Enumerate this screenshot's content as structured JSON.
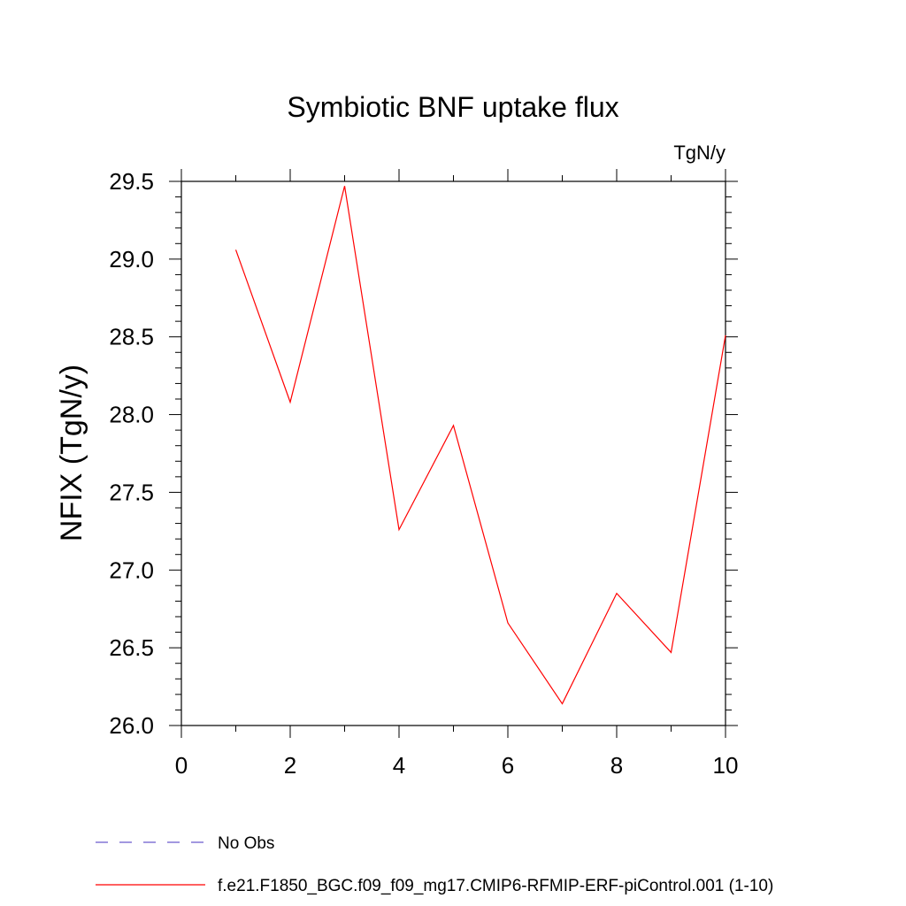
{
  "chart_data": {
    "type": "line",
    "title": "Symbiotic BNF uptake flux",
    "units_label": "TgN/y",
    "ylabel": "NFIX  (TgN/y)",
    "xlabel": "",
    "xlim": [
      0,
      10
    ],
    "ylim": [
      26.0,
      29.6
    ],
    "x_ticks": [
      "0",
      "2",
      "4",
      "6",
      "8",
      "10"
    ],
    "x_tick_values": [
      0,
      2,
      4,
      6,
      8,
      10
    ],
    "y_ticks": [
      "26.0",
      "26.5",
      "27.0",
      "27.5",
      "28.0",
      "28.5",
      "29.0",
      "29.5"
    ],
    "y_tick_values": [
      26.0,
      26.5,
      27.0,
      27.5,
      28.0,
      28.5,
      29.0,
      29.5
    ],
    "grid": false,
    "legend_position": "bottom",
    "series": [
      {
        "name": "f.e21.F1850_BGC.f09_f09_mg17.CMIP6-RFMIP-ERF-piControl.001 (1-10)",
        "color": "#ff0000",
        "style": "solid",
        "x": [
          1,
          2,
          3,
          4,
          5,
          6,
          7,
          8,
          9,
          10
        ],
        "y": [
          29.06,
          28.08,
          29.47,
          27.26,
          27.93,
          26.66,
          26.14,
          26.85,
          26.47,
          28.51
        ]
      }
    ],
    "legend": [
      {
        "label": "No Obs",
        "color": "#6a5acd",
        "style": "dashed"
      },
      {
        "label": "f.e21.F1850_BGC.f09_f09_mg17.CMIP6-RFMIP-ERF-piControl.001 (1-10)",
        "color": "#ff0000",
        "style": "solid"
      }
    ]
  }
}
